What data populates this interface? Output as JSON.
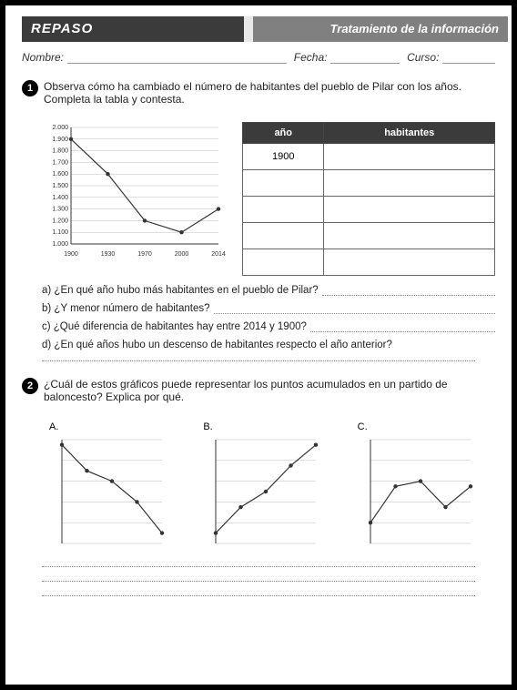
{
  "header": {
    "left": "REPASO",
    "right": "Tratamiento de la información"
  },
  "info": {
    "name_label": "Nombre:",
    "date_label": "Fecha:",
    "course_label": "Curso:"
  },
  "q1": {
    "num": "1",
    "text": "Observa cómo ha cambiado el número de habitantes del pueblo de Pilar con los años. Completa la tabla y contesta.",
    "chart": {
      "type": "line",
      "x_labels": [
        "1900",
        "1930",
        "1970",
        "2000",
        "2014"
      ],
      "y_labels": [
        "1.000",
        "1.100",
        "1.200",
        "1.300",
        "1.400",
        "1.500",
        "1.600",
        "1.700",
        "1.800",
        "1.900",
        "2.000"
      ],
      "ylim": [
        1000,
        2000
      ],
      "points": [
        {
          "x": 0,
          "y": 1900
        },
        {
          "x": 1,
          "y": 1600
        },
        {
          "x": 2,
          "y": 1200
        },
        {
          "x": 3,
          "y": 1100
        },
        {
          "x": 4,
          "y": 1300
        }
      ],
      "line_color": "#333333",
      "point_color": "#333333",
      "grid_color": "#bbbbbb",
      "bg": "#ffffff"
    },
    "table": {
      "headers": [
        "año",
        "habitantes"
      ],
      "rows": [
        [
          "1900",
          ""
        ],
        [
          "",
          ""
        ],
        [
          "",
          ""
        ],
        [
          "",
          ""
        ],
        [
          "",
          ""
        ]
      ]
    },
    "subs": {
      "a": "a) ¿En qué año hubo más habitantes en el pueblo de Pilar?",
      "b": "b) ¿Y menor número de habitantes?",
      "c": "c) ¿Qué diferencia de habitantes hay entre 2014 y 1900?",
      "d": "d) ¿En qué años hubo un descenso de habitantes respecto el año anterior?"
    }
  },
  "q2": {
    "num": "2",
    "text": "¿Cuál de estos gráficos puede representar los puntos acumulados en un partido de baloncesto? Explica por qué.",
    "charts": [
      {
        "label": "A.",
        "type": "line",
        "points": [
          {
            "x": 0,
            "y": 95
          },
          {
            "x": 1,
            "y": 70
          },
          {
            "x": 2,
            "y": 60
          },
          {
            "x": 3,
            "y": 40
          },
          {
            "x": 4,
            "y": 10
          }
        ]
      },
      {
        "label": "B.",
        "type": "line",
        "points": [
          {
            "x": 0,
            "y": 10
          },
          {
            "x": 1,
            "y": 35
          },
          {
            "x": 2,
            "y": 50
          },
          {
            "x": 3,
            "y": 75
          },
          {
            "x": 4,
            "y": 95
          }
        ]
      },
      {
        "label": "C.",
        "type": "line",
        "points": [
          {
            "x": 0,
            "y": 20
          },
          {
            "x": 1,
            "y": 55
          },
          {
            "x": 2,
            "y": 60
          },
          {
            "x": 3,
            "y": 35
          },
          {
            "x": 4,
            "y": 55
          }
        ]
      }
    ],
    "chart_style": {
      "line_color": "#333333",
      "point_color": "#333333",
      "grid_color": "#cccccc",
      "ylim": [
        0,
        100
      ],
      "xcount": 5
    }
  }
}
